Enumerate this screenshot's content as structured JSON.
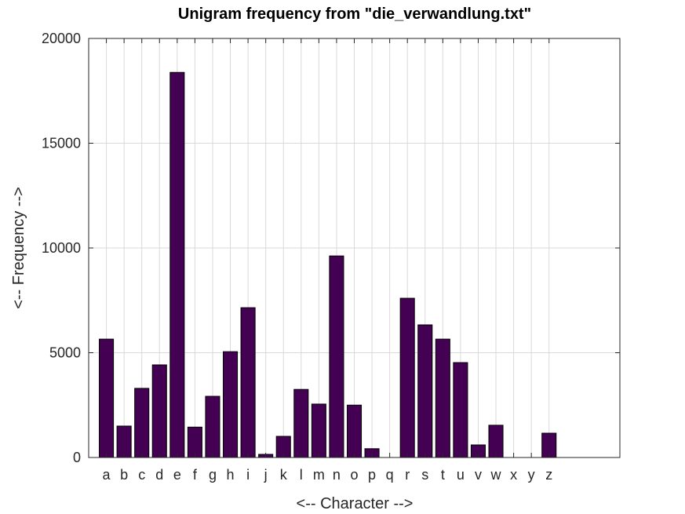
{
  "chart_data": {
    "type": "bar",
    "title": "Unigram frequency from \"die_verwandlung.txt\"",
    "xlabel": "<-- Character -->",
    "ylabel": "<-- Frequency -->",
    "categories": [
      "a",
      "b",
      "c",
      "d",
      "e",
      "f",
      "g",
      "h",
      "i",
      "j",
      "k",
      "l",
      "m",
      "n",
      "o",
      "p",
      "q",
      "r",
      "s",
      "t",
      "u",
      "v",
      "w",
      "x",
      "y",
      "z"
    ],
    "values": [
      5650,
      1500,
      3300,
      4420,
      18380,
      1450,
      2920,
      5050,
      7150,
      150,
      1010,
      3250,
      2550,
      9620,
      2500,
      420,
      0,
      7600,
      6330,
      5650,
      4530,
      600,
      1540,
      0,
      0,
      1160
    ],
    "ylim": [
      0,
      20000
    ],
    "xlim": [
      0,
      30
    ],
    "yticks": [
      0,
      5000,
      10000,
      15000,
      20000
    ],
    "ytick_labels": [
      "0",
      "5000",
      "10000",
      "15000",
      "20000"
    ],
    "grid": true,
    "bar_color": "#440154"
  }
}
